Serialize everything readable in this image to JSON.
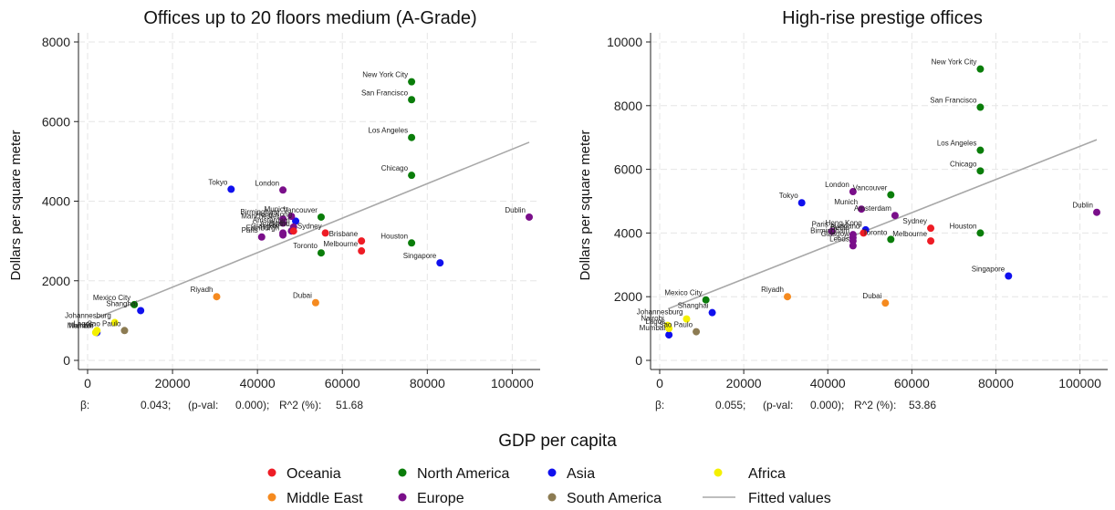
{
  "chart_data": [
    {
      "type": "scatter",
      "title": "Offices up to 20 floors medium (A-Grade)",
      "ylabel": "Dollars per square meter",
      "xlim": [
        0,
        104000
      ],
      "ylim": [
        0,
        8000
      ],
      "xticks": [
        0,
        20000,
        40000,
        60000,
        80000,
        100000
      ],
      "yticks": [
        0,
        2000,
        4000,
        6000,
        8000
      ],
      "grid": true,
      "fit": {
        "name": "Fitted values",
        "x": [
          2000,
          104000
        ],
        "y": [
          1060,
          5480
        ]
      },
      "stats": {
        "beta_label": "β:",
        "beta": "0.043;",
        "pval_label": "(p-val:",
        "pval": "0.000);",
        "r2_label": "R^2 (%):",
        "r2": "51.68"
      },
      "points": [
        {
          "label": "New York City",
          "region": "North America",
          "x": 76300,
          "y": 7000
        },
        {
          "label": "San Francisco",
          "region": "North America",
          "x": 76300,
          "y": 6550
        },
        {
          "label": "Los Angeles",
          "region": "North America",
          "x": 76300,
          "y": 5600
        },
        {
          "label": "Chicago",
          "region": "North America",
          "x": 76300,
          "y": 4650
        },
        {
          "label": "Houston",
          "region": "North America",
          "x": 76300,
          "y": 2950
        },
        {
          "label": "Vancouver",
          "region": "North America",
          "x": 55000,
          "y": 3600
        },
        {
          "label": "Toronto",
          "region": "North America",
          "x": 55000,
          "y": 2700
        },
        {
          "label": "Mexico City",
          "region": "North America",
          "x": 11000,
          "y": 1400
        },
        {
          "label": "Tokyo",
          "region": "Asia",
          "x": 33800,
          "y": 4300
        },
        {
          "label": "Singapore",
          "region": "Asia",
          "x": 83000,
          "y": 2450
        },
        {
          "label": "Shanghai",
          "region": "Asia",
          "x": 12500,
          "y": 1250
        },
        {
          "label": "Mumbai",
          "region": "Asia",
          "x": 2200,
          "y": 700
        },
        {
          "label": "Hong Kong",
          "region": "Asia",
          "x": 49000,
          "y": 3500
        },
        {
          "label": "London",
          "region": "Europe",
          "x": 46000,
          "y": 4280
        },
        {
          "label": "Dublin",
          "region": "Europe",
          "x": 104000,
          "y": 3600
        },
        {
          "label": "Munich",
          "region": "Europe",
          "x": 48000,
          "y": 3620
        },
        {
          "label": "Birmingham",
          "region": "Europe",
          "x": 46000,
          "y": 3550
        },
        {
          "label": "Manchester",
          "region": "Europe",
          "x": 46000,
          "y": 3450
        },
        {
          "label": "Amsterdam",
          "region": "Europe",
          "x": 48500,
          "y": 3350
        },
        {
          "label": "Glasgow",
          "region": "Europe",
          "x": 46000,
          "y": 3200
        },
        {
          "label": "Paris",
          "region": "Europe",
          "x": 41000,
          "y": 3100
        },
        {
          "label": "Berlin",
          "region": "Europe",
          "x": 48000,
          "y": 3250
        },
        {
          "label": "Edinburgh",
          "region": "Europe",
          "x": 46000,
          "y": 3150
        },
        {
          "label": "Sydney",
          "region": "Oceania",
          "x": 56000,
          "y": 3200
        },
        {
          "label": "Melbourne",
          "region": "Oceania",
          "x": 64500,
          "y": 2750
        },
        {
          "label": "Auckland",
          "region": "Oceania",
          "x": 48500,
          "y": 3250
        },
        {
          "label": "Brisbane",
          "region": "Oceania",
          "x": 64500,
          "y": 3000
        },
        {
          "label": "Riyadh",
          "region": "Middle East",
          "x": 30400,
          "y": 1600
        },
        {
          "label": "Dubai",
          "region": "Middle East",
          "x": 53700,
          "y": 1450
        },
        {
          "label": "Sao Paulo",
          "region": "South America",
          "x": 8700,
          "y": 750
        },
        {
          "label": "Johannesburg",
          "region": "Africa",
          "x": 6400,
          "y": 950
        },
        {
          "label": "Nairobi",
          "region": "Africa",
          "x": 1900,
          "y": 700
        },
        {
          "label": "Lagos",
          "region": "Africa",
          "x": 2200,
          "y": 750
        }
      ]
    },
    {
      "type": "scatter",
      "title": "High-rise prestige offices",
      "ylabel": "Dollars per square meter",
      "xlim": [
        0,
        104000
      ],
      "ylim": [
        0,
        10000
      ],
      "xticks": [
        0,
        20000,
        40000,
        60000,
        80000,
        100000
      ],
      "yticks": [
        0,
        2000,
        4000,
        6000,
        8000,
        10000
      ],
      "grid": true,
      "fit": {
        "name": "Fitted values",
        "x": [
          2000,
          104000
        ],
        "y": [
          1620,
          6930
        ]
      },
      "stats": {
        "beta_label": "β:",
        "beta": "0.055;",
        "pval_label": "(p-val:",
        "pval": "0.000);",
        "r2_label": "R^2 (%):",
        "r2": "53.86"
      },
      "points": [
        {
          "label": "New York City",
          "region": "North America",
          "x": 76300,
          "y": 9150
        },
        {
          "label": "San Francisco",
          "region": "North America",
          "x": 76300,
          "y": 7950
        },
        {
          "label": "Los Angeles",
          "region": "North America",
          "x": 76300,
          "y": 6600
        },
        {
          "label": "Chicago",
          "region": "North America",
          "x": 76300,
          "y": 5950
        },
        {
          "label": "Houston",
          "region": "North America",
          "x": 76300,
          "y": 4000
        },
        {
          "label": "Vancouver",
          "region": "North America",
          "x": 55000,
          "y": 5200
        },
        {
          "label": "Toronto",
          "region": "North America",
          "x": 55000,
          "y": 3800
        },
        {
          "label": "Mexico City",
          "region": "North America",
          "x": 11000,
          "y": 1900
        },
        {
          "label": "Tokyo",
          "region": "Asia",
          "x": 33800,
          "y": 4950
        },
        {
          "label": "Singapore",
          "region": "Asia",
          "x": 83000,
          "y": 2650
        },
        {
          "label": "Shanghai",
          "region": "Asia",
          "x": 12500,
          "y": 1500
        },
        {
          "label": "Mumbai",
          "region": "Asia",
          "x": 2200,
          "y": 800
        },
        {
          "label": "Hong Kong",
          "region": "Asia",
          "x": 49000,
          "y": 4100
        },
        {
          "label": "London",
          "region": "Europe",
          "x": 46000,
          "y": 5300
        },
        {
          "label": "Dublin",
          "region": "Europe",
          "x": 104000,
          "y": 4650
        },
        {
          "label": "Munich",
          "region": "Europe",
          "x": 48000,
          "y": 4750
        },
        {
          "label": "Amsterdam",
          "region": "Europe",
          "x": 56000,
          "y": 4550
        },
        {
          "label": "Paris",
          "region": "Europe",
          "x": 41000,
          "y": 4050
        },
        {
          "label": "Berlin",
          "region": "Europe",
          "x": 46000,
          "y": 3950
        },
        {
          "label": "Birmingham",
          "region": "Europe",
          "x": 46000,
          "y": 3850
        },
        {
          "label": "Glasgow",
          "region": "Europe",
          "x": 46000,
          "y": 3750
        },
        {
          "label": "Leeds",
          "region": "Europe",
          "x": 46000,
          "y": 3600
        },
        {
          "label": "Sydney",
          "region": "Oceania",
          "x": 64500,
          "y": 4150
        },
        {
          "label": "Melbourne",
          "region": "Oceania",
          "x": 64500,
          "y": 3750
        },
        {
          "label": "Auckland",
          "region": "Oceania",
          "x": 48500,
          "y": 4000
        },
        {
          "label": "Riyadh",
          "region": "Middle East",
          "x": 30400,
          "y": 2000
        },
        {
          "label": "Dubai",
          "region": "Middle East",
          "x": 53700,
          "y": 1800
        },
        {
          "label": "Sao Paulo",
          "region": "South America",
          "x": 8700,
          "y": 900
        },
        {
          "label": "Johannesburg",
          "region": "Africa",
          "x": 6400,
          "y": 1300
        },
        {
          "label": "Nairobi",
          "region": "Africa",
          "x": 1900,
          "y": 1100
        },
        {
          "label": "Lagos",
          "region": "Africa",
          "x": 2200,
          "y": 1000
        }
      ]
    }
  ],
  "shared": {
    "xlabel": "GDP per capita",
    "legend": [
      {
        "name": "Oceania",
        "color": "#ee1c25",
        "kind": "marker"
      },
      {
        "name": "North America",
        "color": "#0a7d0a",
        "kind": "marker"
      },
      {
        "name": "Asia",
        "color": "#1010ee",
        "kind": "marker"
      },
      {
        "name": "Africa",
        "color": "#f4f000",
        "kind": "marker"
      },
      {
        "name": "Middle East",
        "color": "#f58a1f",
        "kind": "marker"
      },
      {
        "name": "Europe",
        "color": "#7a0f8a",
        "kind": "marker"
      },
      {
        "name": "South America",
        "color": "#8c7b52",
        "kind": "marker"
      },
      {
        "name": "Fitted values",
        "color": "#a8a8a8",
        "kind": "line"
      }
    ]
  }
}
